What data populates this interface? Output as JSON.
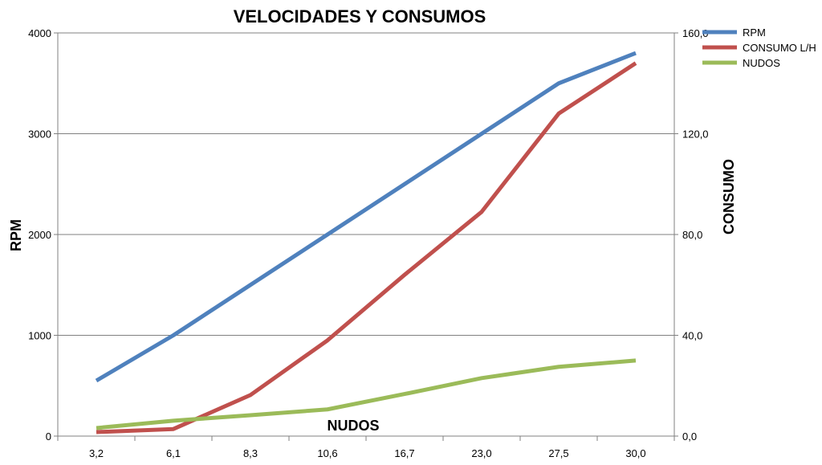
{
  "chart_data": {
    "type": "line",
    "title": "VELOCIDADES Y CONSUMOS",
    "xlabel": "NUDOS",
    "ylabel": "RPM",
    "y2label": "CONSUMO",
    "categories": [
      "3,2",
      "6,1",
      "8,3",
      "10,6",
      "16,7",
      "23,0",
      "27,5",
      "30,0"
    ],
    "ylim": [
      0,
      4000
    ],
    "yticks": [
      "0",
      "1000",
      "2000",
      "3000",
      "4000"
    ],
    "y2lim": [
      0,
      160
    ],
    "y2ticks": [
      "0,0",
      "40,0",
      "80,0",
      "120,0",
      "160,0"
    ],
    "grid": true,
    "legend_position": "top-right",
    "series": [
      {
        "name": "RPM",
        "axis": "left",
        "color": "#4F81BD",
        "values": [
          550,
          1000,
          1500,
          2000,
          2500,
          3000,
          3500,
          3800
        ]
      },
      {
        "name": "CONSUMO L/H",
        "axis": "right",
        "color": "#C0504D",
        "values": [
          1.6,
          2.8,
          16.3,
          38.0,
          64.0,
          89.0,
          128.0,
          148.0
        ]
      },
      {
        "name": "NUDOS",
        "axis": "right",
        "color": "#9BBB59",
        "values": [
          3.2,
          6.1,
          8.3,
          10.6,
          16.7,
          23.0,
          27.5,
          30.0
        ]
      }
    ]
  }
}
